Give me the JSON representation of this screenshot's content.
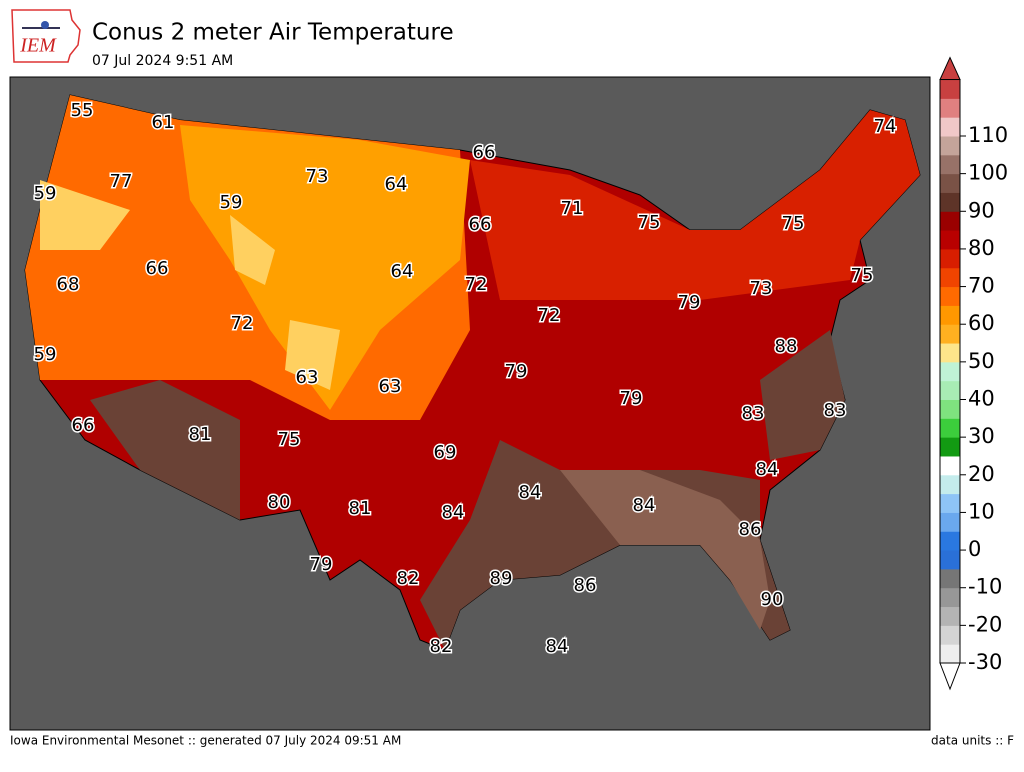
{
  "header": {
    "title": "Conus 2 meter Air Temperature",
    "subtitle": "07 Jul 2024 9:51 AM",
    "logo_text": "IEM"
  },
  "footer": {
    "left": "Iowa Environmental Mesonet :: generated 07 July 2024 09:51 AM",
    "right": "data units :: F"
  },
  "colorbar": {
    "ticks": [
      -30,
      -20,
      -10,
      0,
      10,
      20,
      30,
      40,
      50,
      60,
      70,
      80,
      90,
      100,
      110
    ],
    "colors": [
      "#eeeeee",
      "#d4d4d4",
      "#b4b4b4",
      "#979797",
      "#767676",
      "#2a70d8",
      "#2a78e0",
      "#6aa8ee",
      "#8ec4f6",
      "#c4ecec",
      "#ffffff",
      "#129a12",
      "#3ccd3c",
      "#7fe27f",
      "#a8ecb4",
      "#bff3d6",
      "#fde58a",
      "#ffb020",
      "#ff9800",
      "#ff6a00",
      "#f04400",
      "#d81e00",
      "#b80000",
      "#9a0000",
      "#5e3428",
      "#7a5246",
      "#987268",
      "#c4a49a",
      "#f0c8c8",
      "#e08080",
      "#c84040"
    ]
  },
  "map_labels": [
    55,
    61,
    66,
    74,
    73,
    64,
    59,
    77,
    59,
    71,
    75,
    75,
    66,
    66,
    68,
    64,
    72,
    75,
    72,
    72,
    79,
    73,
    59,
    88,
    63,
    63,
    79,
    79,
    66,
    81,
    75,
    83,
    83,
    69,
    84,
    84,
    80,
    81,
    84,
    84,
    86,
    79,
    82,
    89,
    86,
    90,
    82,
    84
  ]
}
